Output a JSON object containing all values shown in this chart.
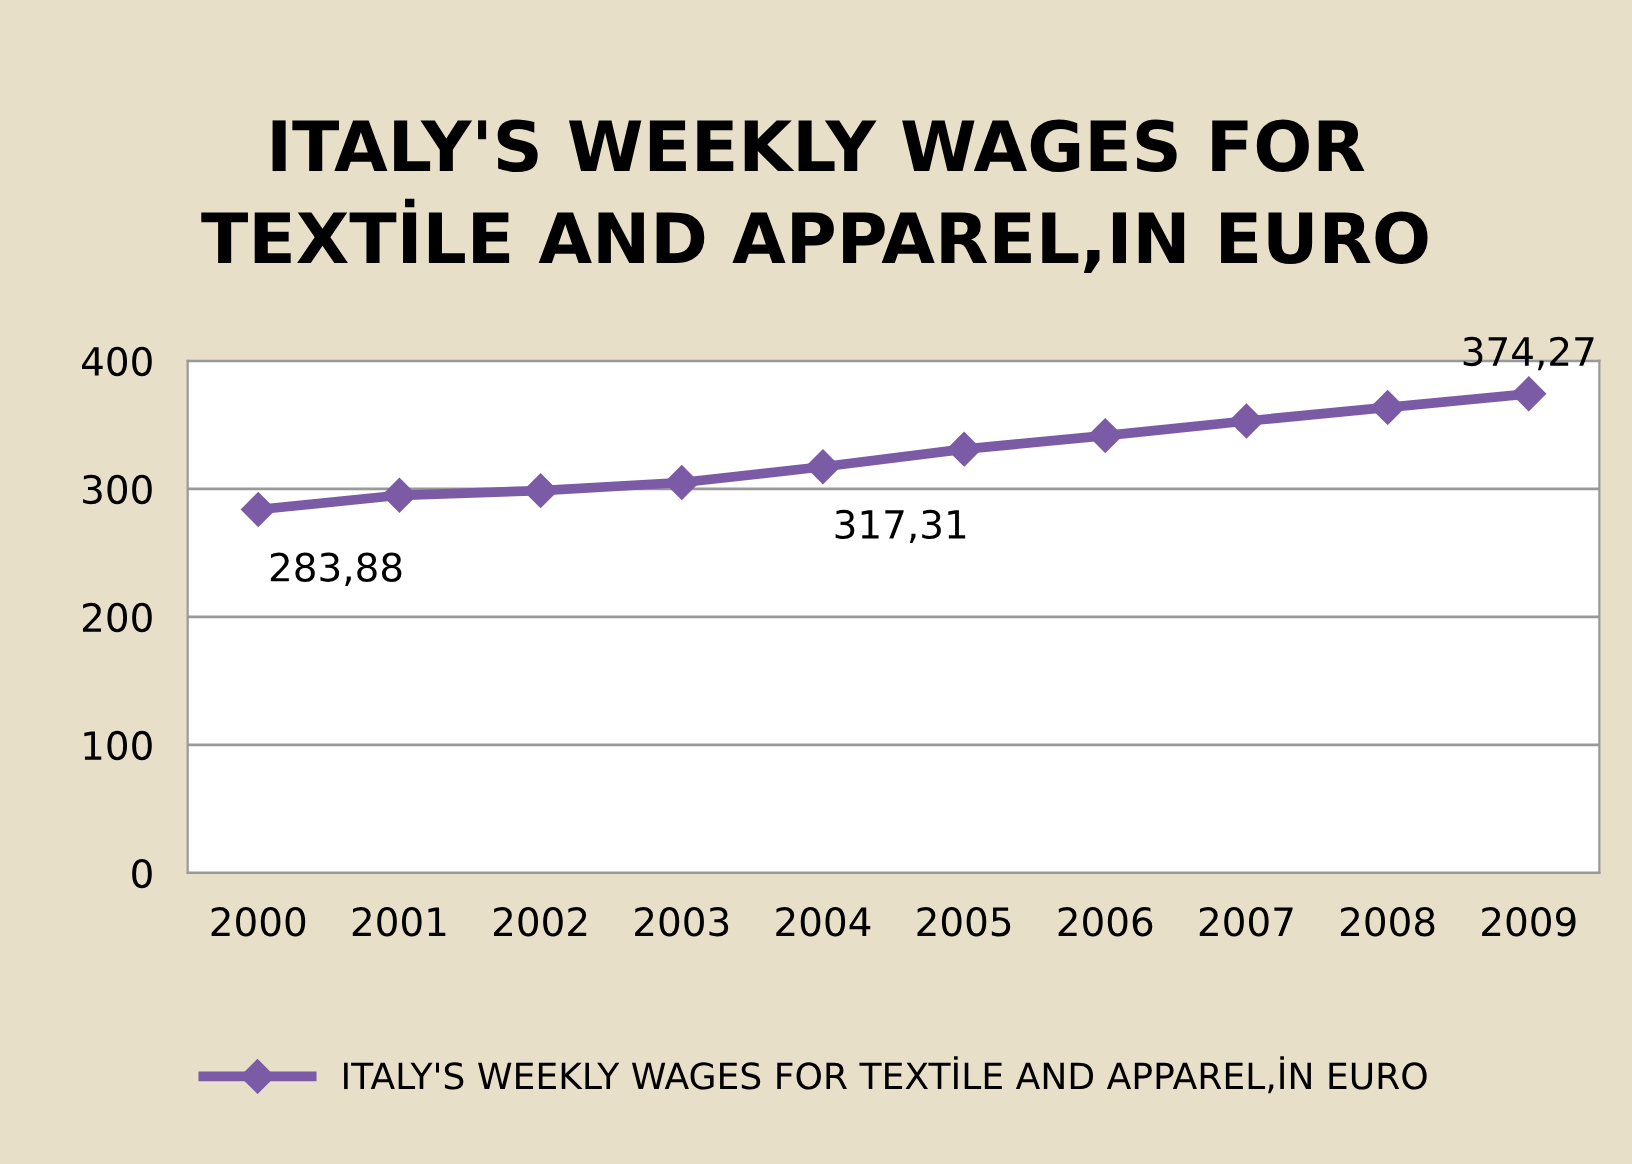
{
  "chart_data": {
    "type": "line",
    "title": "ITALY'S WEEKLY WAGES FOR\nTEXTİLE AND APPAREL,IN EURO",
    "categories": [
      "2000",
      "2001",
      "2002",
      "2003",
      "2004",
      "2005",
      "2006",
      "2007",
      "2008",
      "2009"
    ],
    "series": [
      {
        "name": "ITALY'S WEEKLY WAGES FOR TEXTİLE AND APPAREL,İN EURO",
        "color": "#7b5ba6",
        "values": [
          283.88,
          295,
          298.6,
          305,
          317.31,
          331,
          341.6,
          353,
          363.6,
          374.27
        ],
        "value_labels": [
          "283,88",
          null,
          null,
          null,
          "317,31",
          null,
          null,
          null,
          null,
          "374,27"
        ]
      }
    ],
    "ylim": [
      0,
      400
    ],
    "yticks": [
      0,
      100,
      200,
      300,
      400
    ],
    "grid": "y",
    "legend": "bottom",
    "marker": "diamond",
    "line_style": "solid"
  }
}
